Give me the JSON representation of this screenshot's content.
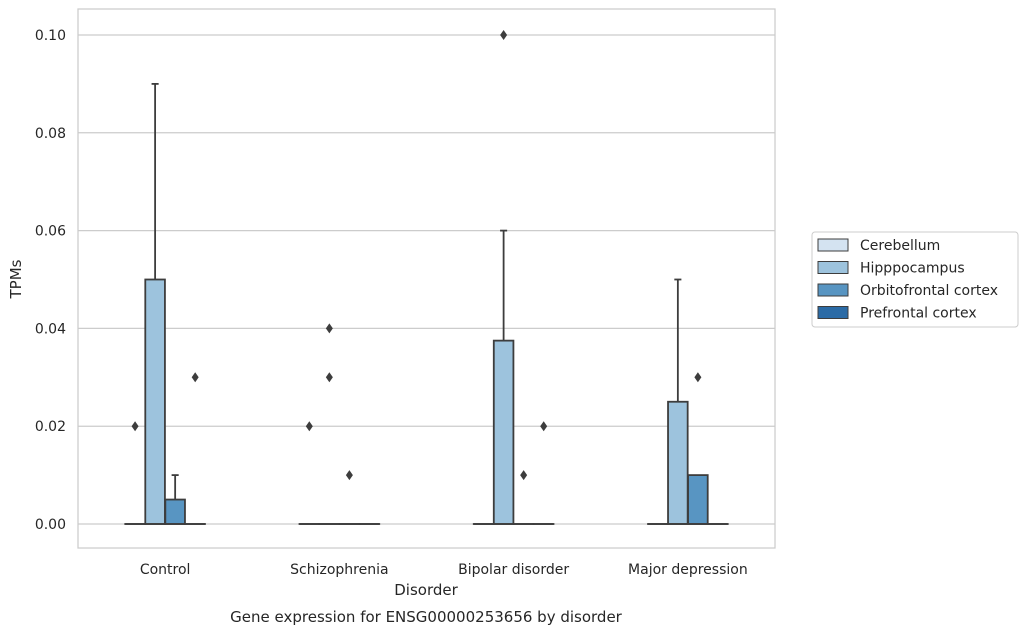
{
  "chart_data": {
    "type": "box",
    "caption": "Gene expression for ENSG00000253656 by disorder",
    "xlabel": "Disorder",
    "ylabel": "TPMs",
    "ylim": [
      -0.005,
      0.105
    ],
    "yticks": [
      0.0,
      0.02,
      0.04,
      0.06,
      0.08,
      0.1
    ],
    "ytick_labels": [
      "0.00",
      "0.02",
      "0.04",
      "0.06",
      "0.08",
      "0.10"
    ],
    "categories": [
      "Control",
      "Schizophrenia",
      "Bipolar disorder",
      "Major depression"
    ],
    "grid": "horizontal",
    "legend_position": "right",
    "series": [
      {
        "name": "Cerebellum",
        "color": "#d4e3f1",
        "boxes": [
          {
            "q1": 0,
            "median": 0,
            "q3": 0,
            "whisker_low": 0,
            "whisker_high": 0,
            "outliers": [
              0.02
            ]
          },
          {
            "q1": 0,
            "median": 0,
            "q3": 0,
            "whisker_low": 0,
            "whisker_high": 0,
            "outliers": [
              0.02
            ]
          },
          {
            "q1": 0,
            "median": 0,
            "q3": 0,
            "whisker_low": 0,
            "whisker_high": 0,
            "outliers": []
          },
          {
            "q1": 0,
            "median": 0,
            "q3": 0,
            "whisker_low": 0,
            "whisker_high": 0,
            "outliers": []
          }
        ]
      },
      {
        "name": "Hipppocampus",
        "color": "#9dc3dd",
        "boxes": [
          {
            "q1": 0,
            "median": 0,
            "q3": 0.05,
            "whisker_low": 0,
            "whisker_high": 0.09,
            "outliers": []
          },
          {
            "q1": 0,
            "median": 0,
            "q3": 0,
            "whisker_low": 0,
            "whisker_high": 0,
            "outliers": [
              0.03,
              0.04
            ]
          },
          {
            "q1": 0,
            "median": 0,
            "q3": 0.0375,
            "whisker_low": 0,
            "whisker_high": 0.06,
            "outliers": [
              0.1
            ]
          },
          {
            "q1": 0,
            "median": 0,
            "q3": 0.025,
            "whisker_low": 0,
            "whisker_high": 0.05,
            "outliers": []
          }
        ]
      },
      {
        "name": "Orbitofrontal cortex",
        "color": "#5895c2",
        "boxes": [
          {
            "q1": 0,
            "median": 0,
            "q3": 0.005,
            "whisker_low": 0,
            "whisker_high": 0.01,
            "outliers": []
          },
          {
            "q1": 0,
            "median": 0,
            "q3": 0,
            "whisker_low": 0,
            "whisker_high": 0,
            "outliers": [
              0.01
            ]
          },
          {
            "q1": 0,
            "median": 0,
            "q3": 0,
            "whisker_low": 0,
            "whisker_high": 0,
            "outliers": [
              0.01
            ]
          },
          {
            "q1": 0,
            "median": 0,
            "q3": 0.01,
            "whisker_low": 0,
            "whisker_high": 0.01,
            "outliers": [
              0.03
            ]
          }
        ]
      },
      {
        "name": "Prefrontal cortex",
        "color": "#2b6ba6",
        "boxes": [
          {
            "q1": 0,
            "median": 0,
            "q3": 0,
            "whisker_low": 0,
            "whisker_high": 0,
            "outliers": [
              0.03
            ]
          },
          {
            "q1": 0,
            "median": 0,
            "q3": 0,
            "whisker_low": 0,
            "whisker_high": 0,
            "outliers": []
          },
          {
            "q1": 0,
            "median": 0,
            "q3": 0,
            "whisker_low": 0,
            "whisker_high": 0,
            "outliers": [
              0.02
            ]
          },
          {
            "q1": 0,
            "median": 0,
            "q3": 0,
            "whisker_low": 0,
            "whisker_high": 0,
            "outliers": []
          }
        ]
      }
    ]
  }
}
